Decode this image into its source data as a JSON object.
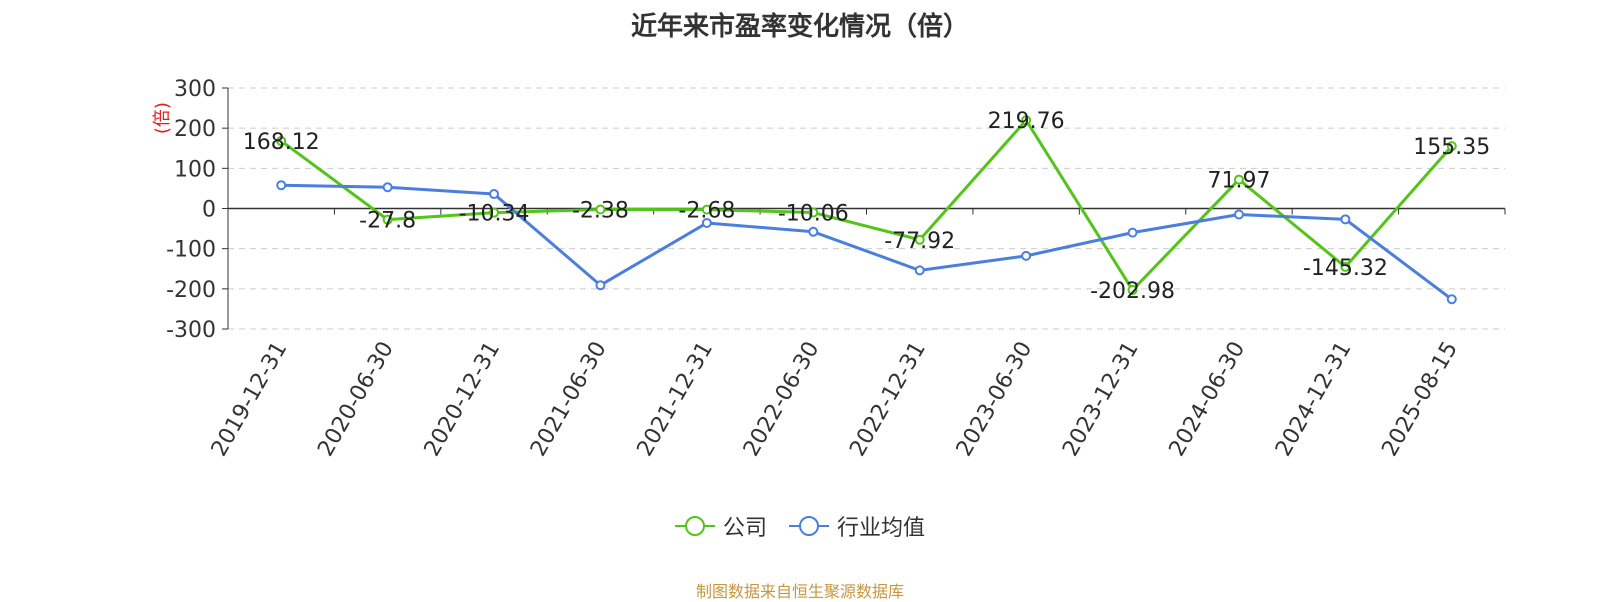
{
  "title": "近年来市盈率变化情况（倍）",
  "source": "制图数据来自恒生聚源数据库",
  "colors": {
    "company": "#52c41a",
    "industry": "#4a7fde",
    "unit": "#e02020",
    "source": "#c8963e"
  },
  "chart_data": {
    "type": "line",
    "title": "近年来市盈率变化情况（倍）",
    "ylabel": "(倍)",
    "ylim": [
      -300,
      300
    ],
    "yticks": [
      300,
      200,
      100,
      0,
      -100,
      -200,
      -300
    ],
    "grid": true,
    "legend_position": "bottom",
    "categories": [
      "2019-12-31",
      "2020-06-30",
      "2020-12-31",
      "2021-06-30",
      "2021-12-31",
      "2022-06-30",
      "2022-12-31",
      "2023-06-30",
      "2023-12-31",
      "2024-06-30",
      "2024-12-31",
      "2025-08-15"
    ],
    "series": [
      {
        "name": "公司",
        "values": [
          168.12,
          -27.8,
          -10.34,
          -2.38,
          -2.68,
          -10.06,
          -77.92,
          219.76,
          -202.98,
          71.97,
          -145.32,
          155.35
        ],
        "labels": [
          "168.12",
          "-27.8",
          "-10.34",
          "-2.38",
          "-2.68",
          "-10.06",
          "-77.92",
          "219.76",
          "-202.98",
          "71.97",
          "-145.32",
          "155.35"
        ]
      },
      {
        "name": "行业均值",
        "values": [
          58,
          53,
          36,
          -191,
          -36,
          -58,
          -154,
          -118,
          -60,
          -15,
          -27,
          -226
        ]
      }
    ]
  }
}
